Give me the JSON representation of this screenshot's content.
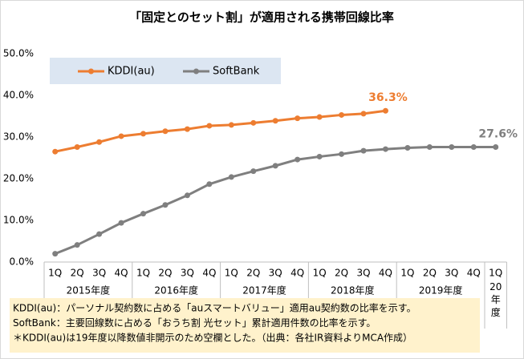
{
  "chart_data": {
    "type": "line",
    "title": "「固定とのセット割」が適用される携帯回線比率",
    "categories": [
      "1Q",
      "2Q",
      "3Q",
      "4Q",
      "1Q",
      "2Q",
      "3Q",
      "4Q",
      "1Q",
      "2Q",
      "3Q",
      "4Q",
      "1Q",
      "2Q",
      "3Q",
      "4Q",
      "1Q",
      "2Q",
      "3Q",
      "4Q",
      "1Q"
    ],
    "groups": [
      "2015年度",
      "2016年度",
      "2017年度",
      "2018年度",
      "2019年度",
      "20年度"
    ],
    "series": [
      {
        "name": "KDDI(au)",
        "color": "#ed7d31",
        "values": [
          26.5,
          27.6,
          28.8,
          30.2,
          30.8,
          31.4,
          31.9,
          32.7,
          32.9,
          33.4,
          33.9,
          34.5,
          34.8,
          35.3,
          35.6,
          36.3,
          null,
          null,
          null,
          null,
          null
        ],
        "value_labels": [
          null,
          null,
          null,
          null,
          null,
          null,
          null,
          null,
          null,
          null,
          null,
          null,
          null,
          null,
          null,
          "36.3%",
          null,
          null,
          null,
          null,
          null
        ]
      },
      {
        "name": "SoftBank",
        "color": "#7f7f7f",
        "values": [
          2.0,
          4.1,
          6.7,
          9.4,
          11.6,
          13.7,
          16.0,
          18.7,
          20.4,
          21.8,
          23.1,
          24.6,
          25.3,
          25.9,
          26.7,
          27.1,
          27.4,
          27.6,
          27.6,
          27.6,
          27.6
        ],
        "value_labels": [
          null,
          null,
          null,
          null,
          null,
          null,
          null,
          null,
          null,
          null,
          null,
          null,
          null,
          null,
          null,
          null,
          null,
          null,
          null,
          null,
          "27.6%"
        ]
      }
    ],
    "ylim": [
      0,
      50
    ],
    "yticks": [
      {
        "value": 0,
        "label": "0.0%"
      },
      {
        "value": 10,
        "label": "10.0%"
      },
      {
        "value": 20,
        "label": "20.0%"
      },
      {
        "value": 30,
        "label": "30.0%"
      },
      {
        "value": 40,
        "label": "40.0%"
      },
      {
        "value": 50,
        "label": "50.0%"
      }
    ],
    "grid": false,
    "notes": [
      "KDDI(au)：パーソナル契約数に占める「auスマートバリュー」適用au契約数の比率を示す。",
      "SoftBank：主要回線数に占める「おうち割 光セット」累計適用件数の比率を示す。",
      "＊KDDI(au)は19年度以降数値非開示のため空欄とした。（出典：各社IR資料よりMCA作成）"
    ]
  }
}
